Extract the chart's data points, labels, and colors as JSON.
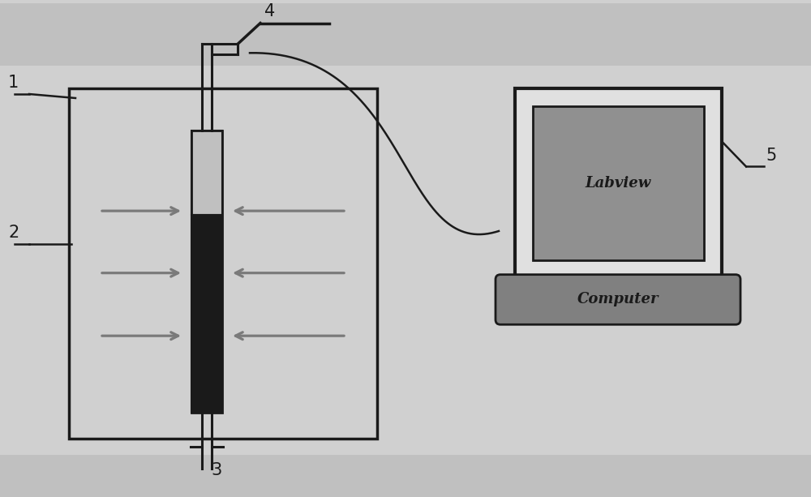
{
  "bg_color": "#d0d0d0",
  "main_bg": "#d0d0d0",
  "line_color": "#1a1a1a",
  "arrow_color": "#7a7a7a",
  "box_fill": "#d0d0d0",
  "tube_dark": "#1a1a1a",
  "tube_light": "#c8c8c8",
  "screen_fill": "#909090",
  "computer_fill": "#808080",
  "monitor_outer_fill": "#e8e8e8",
  "label_1": "1",
  "label_2": "2",
  "label_3": "3",
  "label_4": "4",
  "label_5": "5",
  "labview_text": "Labview",
  "computer_text": "Computer",
  "font_size_labels": 15,
  "font_size_box_text": 13
}
